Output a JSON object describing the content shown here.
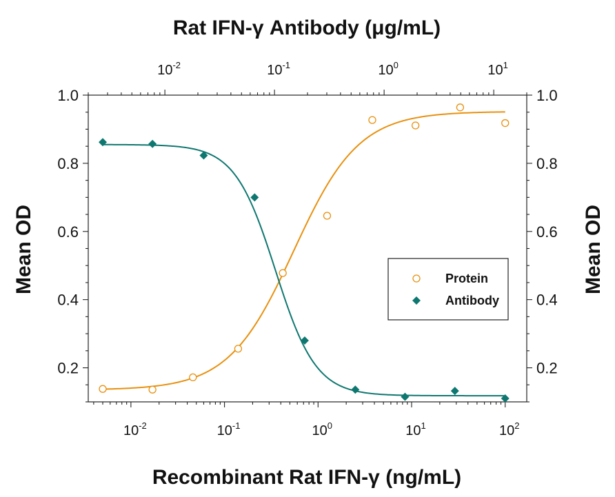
{
  "chart_data": {
    "type": "scatter",
    "top_xlabel": "Rat IFN-γ Antibody (μg/mL)",
    "xlabel": "Recombinant Rat IFN-γ (ng/mL)",
    "ylabel_left": "Mean OD",
    "ylabel_right": "Mean OD",
    "x_scale": "log",
    "xlim": [
      0.0035,
      170
    ],
    "ylim": [
      0.1,
      1.0
    ],
    "y_ticks": [
      "0.2",
      "0.4",
      "0.6",
      "0.8",
      "1.0"
    ],
    "bottom_ticks": [
      {
        "label": "10",
        "exp": "-2"
      },
      {
        "label": "10",
        "exp": "-1"
      },
      {
        "label": "10",
        "exp": "0"
      },
      {
        "label": "10",
        "exp": "1"
      },
      {
        "label": "10",
        "exp": "2"
      }
    ],
    "top_ticks": [
      {
        "label": "10",
        "exp": "-2"
      },
      {
        "label": "10",
        "exp": "-1"
      },
      {
        "label": "10",
        "exp": "0"
      },
      {
        "label": "10",
        "exp": "1"
      }
    ],
    "top_axis_xlim": [
      0.002,
      20
    ],
    "grid": false,
    "legend_position": "right-middle",
    "series": [
      {
        "name": "Protein",
        "marker": "open-circle",
        "color": "#E8900E",
        "x": [
          0.005,
          0.017,
          0.046,
          0.14,
          0.42,
          1.25,
          3.8,
          11,
          33,
          100
        ],
        "y": [
          0.138,
          0.136,
          0.172,
          0.256,
          0.478,
          0.646,
          0.927,
          0.911,
          0.964,
          0.918
        ]
      },
      {
        "name": "Antibody",
        "marker": "filled-diamond",
        "color": "#0E7770",
        "x": [
          0.005,
          0.017,
          0.06,
          0.21,
          0.72,
          2.5,
          8.5,
          29,
          100
        ],
        "y": [
          0.862,
          0.857,
          0.823,
          0.7,
          0.28,
          0.136,
          0.115,
          0.132,
          0.11
        ]
      }
    ],
    "fits": [
      {
        "series": "Protein",
        "bottom": 0.135,
        "top": 0.952,
        "ec50": 0.55,
        "hill": 1.25
      },
      {
        "series": "Antibody",
        "bottom": 0.118,
        "top": 0.855,
        "ec50": 0.35,
        "hill": -2.0
      }
    ]
  }
}
